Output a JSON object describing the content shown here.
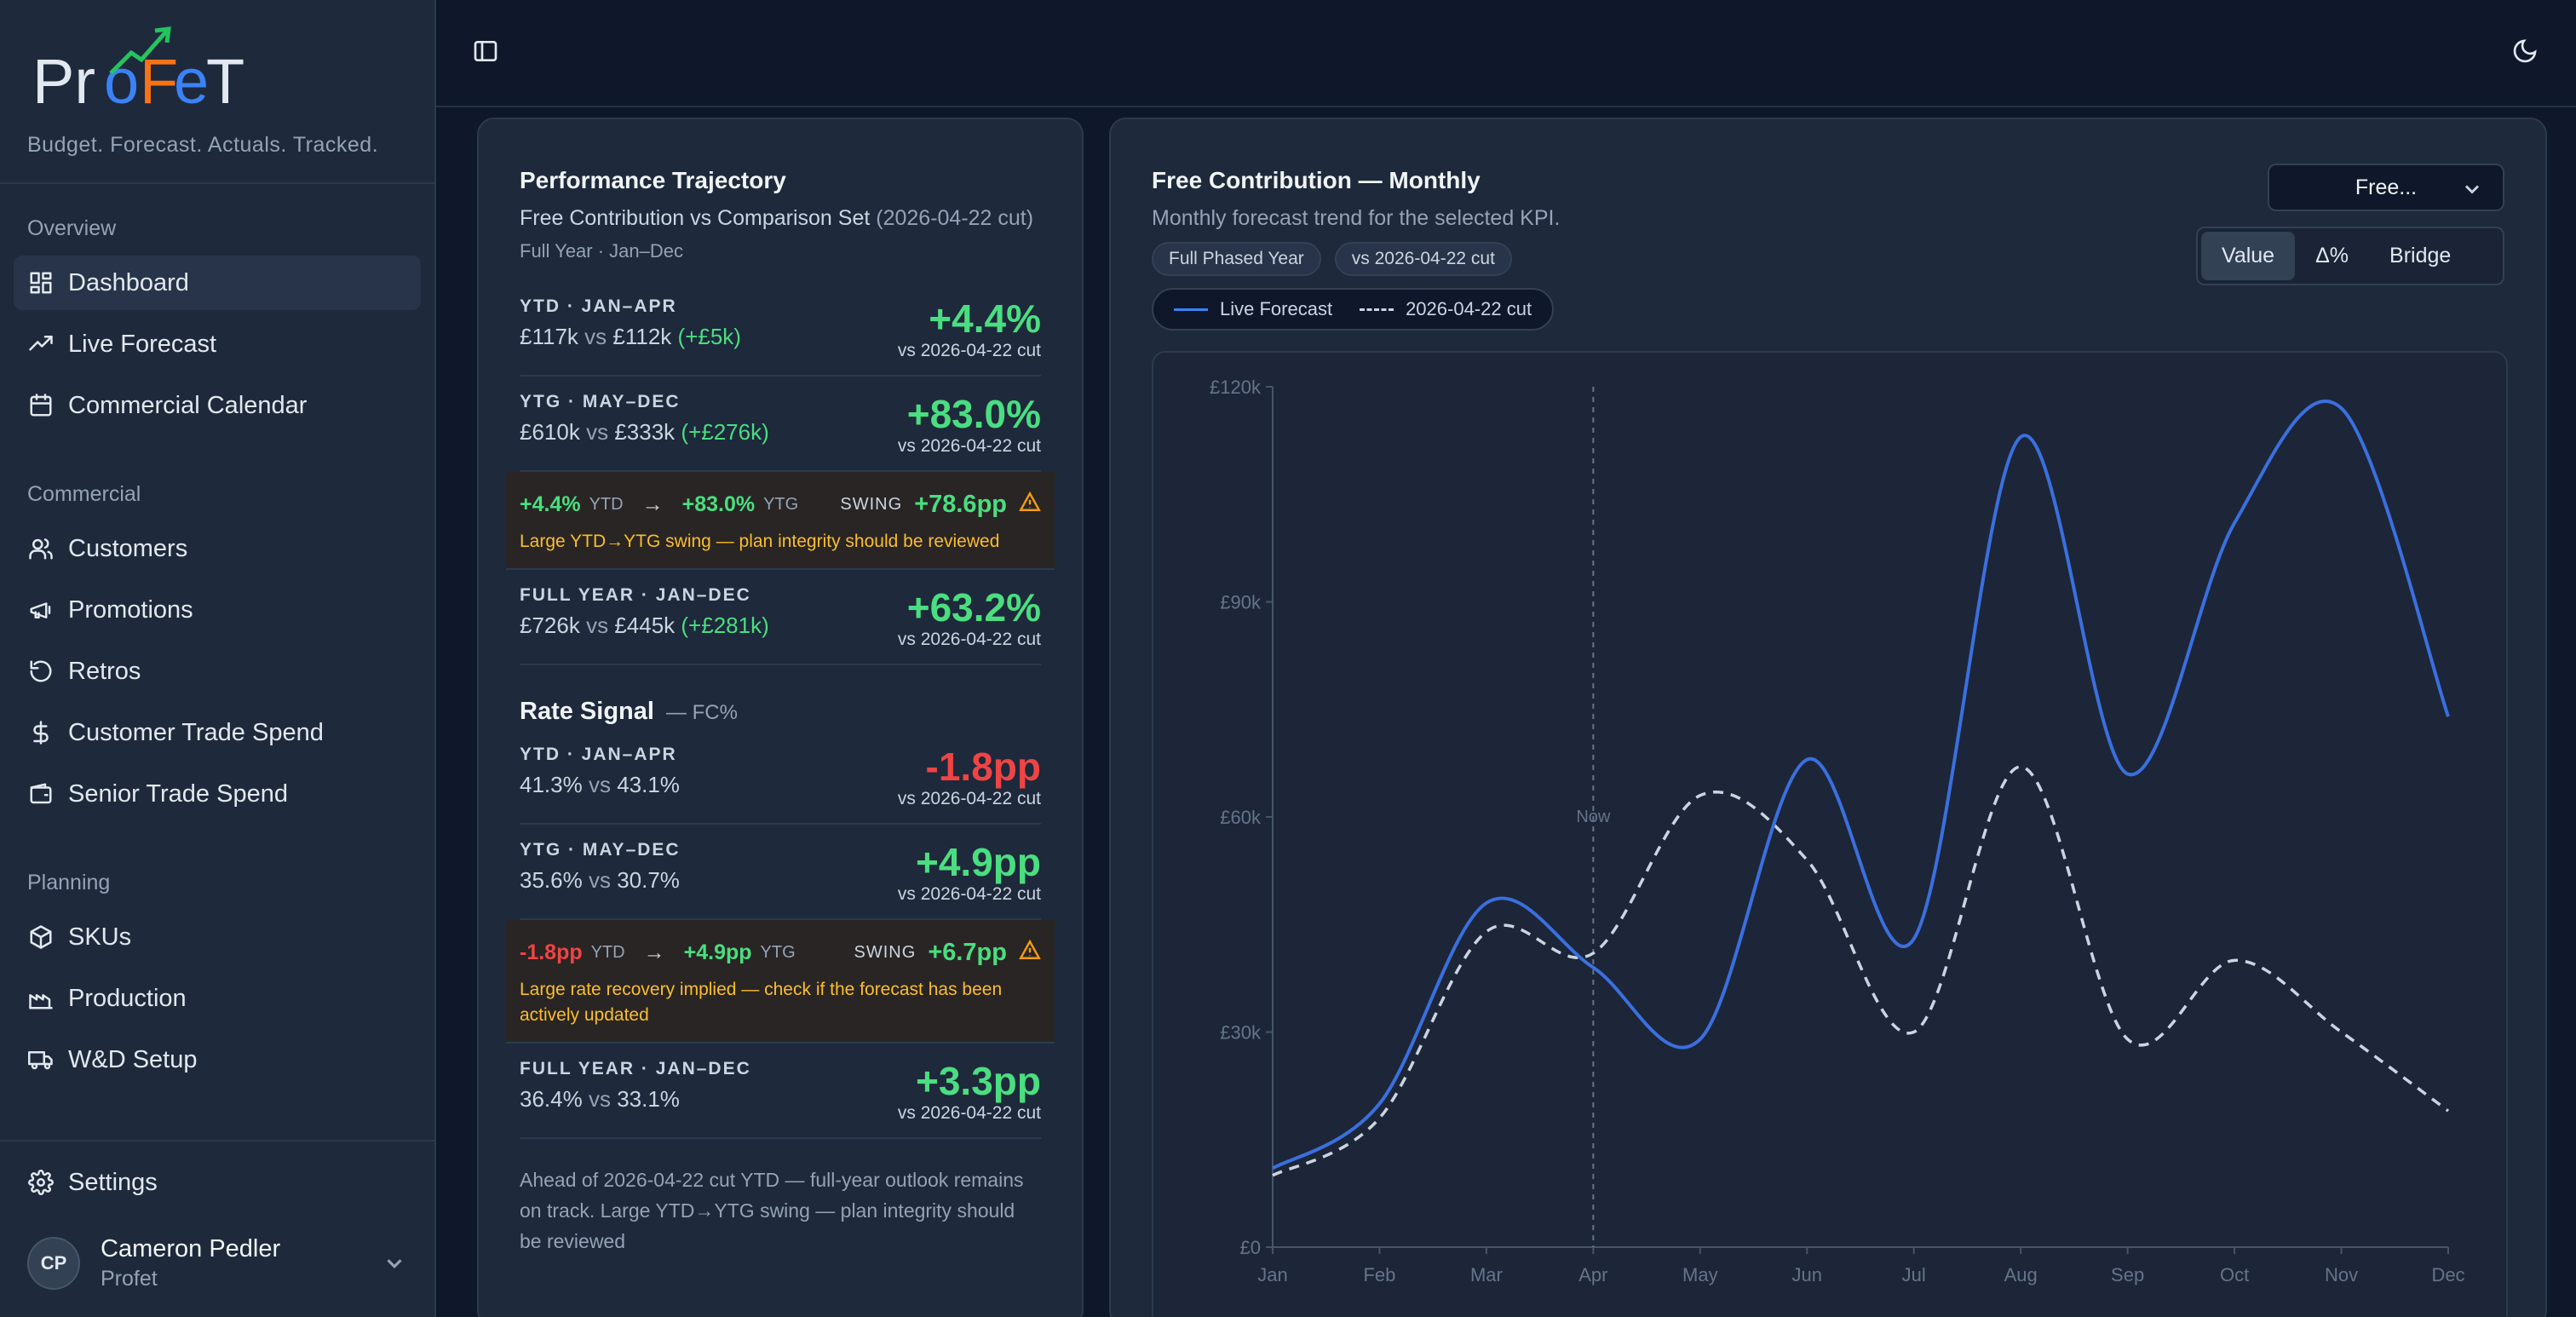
{
  "brand": {
    "logo_text": "ProFeT",
    "tagline": "Budget. Forecast. Actuals. Tracked."
  },
  "sidebar": {
    "sections": [
      {
        "heading": "Overview",
        "items": [
          {
            "label": "Dashboard",
            "icon": "dashboard-icon",
            "active": true
          },
          {
            "label": "Live Forecast",
            "icon": "trending-up-icon"
          },
          {
            "label": "Commercial Calendar",
            "icon": "calendar-icon"
          }
        ]
      },
      {
        "heading": "Commercial",
        "items": [
          {
            "label": "Customers",
            "icon": "users-icon"
          },
          {
            "label": "Promotions",
            "icon": "megaphone-icon"
          },
          {
            "label": "Retros",
            "icon": "rotate-icon"
          },
          {
            "label": "Customer Trade Spend",
            "icon": "dollar-icon"
          },
          {
            "label": "Senior Trade Spend",
            "icon": "wallet-icon"
          }
        ]
      },
      {
        "heading": "Planning",
        "items": [
          {
            "label": "SKUs",
            "icon": "box-icon"
          },
          {
            "label": "Production",
            "icon": "factory-icon"
          },
          {
            "label": "W&D Setup",
            "icon": "truck-icon"
          }
        ]
      }
    ],
    "settings_label": "Settings",
    "user": {
      "initials": "CP",
      "name": "Cameron Pedler",
      "org": "Profet"
    }
  },
  "perf": {
    "title": "Performance Trajectory",
    "subtitle_main": "Free Contribution vs Comparison Set",
    "subtitle_muted": "(2026-04-22 cut)",
    "meta": "Full Year · Jan–Dec",
    "ytd": {
      "label": "YTD · JAN–APR",
      "a": "£117k",
      "vs": "vs",
      "b": "£112k",
      "delta": "(+£5k)",
      "big": "+4.4%",
      "cut": "vs 2026-04-22 cut"
    },
    "ytg": {
      "label": "YTG · MAY–DEC",
      "a": "£610k",
      "vs": "vs",
      "b": "£333k",
      "delta": "(+£276k)",
      "big": "+83.0%",
      "cut": "vs 2026-04-22 cut"
    },
    "swing": {
      "from": "+4.4%",
      "from_tag": "YTD",
      "arrow": "→",
      "to": "+83.0%",
      "to_tag": "YTG",
      "label": "SWING",
      "value": "+78.6pp",
      "msg": "Large YTD→YTG swing — plan integrity should be reviewed"
    },
    "fy": {
      "label": "FULL YEAR · JAN–DEC",
      "a": "£726k",
      "vs": "vs",
      "b": "£445k",
      "delta": "(+£281k)",
      "big": "+63.2%",
      "cut": "vs 2026-04-22 cut"
    }
  },
  "rate": {
    "title": "Rate Signal",
    "sub": "— FC%",
    "ytd": {
      "label": "YTD · JAN–APR",
      "a": "41.3%",
      "vs": "vs",
      "b": "43.1%",
      "big": "-1.8pp",
      "cut": "vs 2026-04-22 cut"
    },
    "ytg": {
      "label": "YTG · MAY–DEC",
      "a": "35.6%",
      "vs": "vs",
      "b": "30.7%",
      "big": "+4.9pp",
      "cut": "vs 2026-04-22 cut"
    },
    "swing": {
      "from": "-1.8pp",
      "from_tag": "YTD",
      "arrow": "→",
      "to": "+4.9pp",
      "to_tag": "YTG",
      "label": "SWING",
      "value": "+6.7pp",
      "msg": "Large rate recovery implied — check if the forecast has been actively updated"
    },
    "fy": {
      "label": "FULL YEAR · JAN–DEC",
      "a": "36.4%",
      "vs": "vs",
      "b": "33.1%",
      "big": "+3.3pp",
      "cut": "vs 2026-04-22 cut"
    },
    "summary": "Ahead of 2026-04-22 cut YTD — full-year outlook remains on track. Large YTD→YTG swing — plan integrity should be reviewed"
  },
  "chart_panel": {
    "title": "Free Contribution — Monthly",
    "subtitle": "Monthly forecast trend for the selected KPI.",
    "pills": [
      "Full Phased Year",
      "vs 2026-04-22 cut"
    ],
    "legend_live": "Live Forecast",
    "legend_cut": "2026-04-22 cut",
    "select_value": "Free...",
    "toggle": [
      "Value",
      "Δ%",
      "Bridge"
    ],
    "toggle_active": "Value"
  },
  "chart_data": {
    "type": "line",
    "categories": [
      "Jan",
      "Feb",
      "Mar",
      "Apr",
      "May",
      "Jun",
      "Jul",
      "Aug",
      "Sep",
      "Oct",
      "Nov",
      "Dec"
    ],
    "series": [
      {
        "name": "Live Forecast",
        "color": "#3b6fe0",
        "style": "solid",
        "values": [
          11,
          20,
          48,
          39,
          29,
          68,
          43,
          113,
          66,
          101,
          117,
          74
        ]
      },
      {
        "name": "2026-04-22 cut",
        "color": "#cbd5e1",
        "style": "dashed",
        "values": [
          10,
          18,
          44,
          41,
          63,
          54,
          30,
          67,
          29,
          40,
          30,
          19
        ]
      }
    ],
    "y_ticks": [
      "£0",
      "£30k",
      "£60k",
      "£90k",
      "£120k"
    ],
    "ylim": [
      0,
      120
    ],
    "now_marker": {
      "category": "Apr",
      "label": "Now"
    },
    "grid": false
  }
}
